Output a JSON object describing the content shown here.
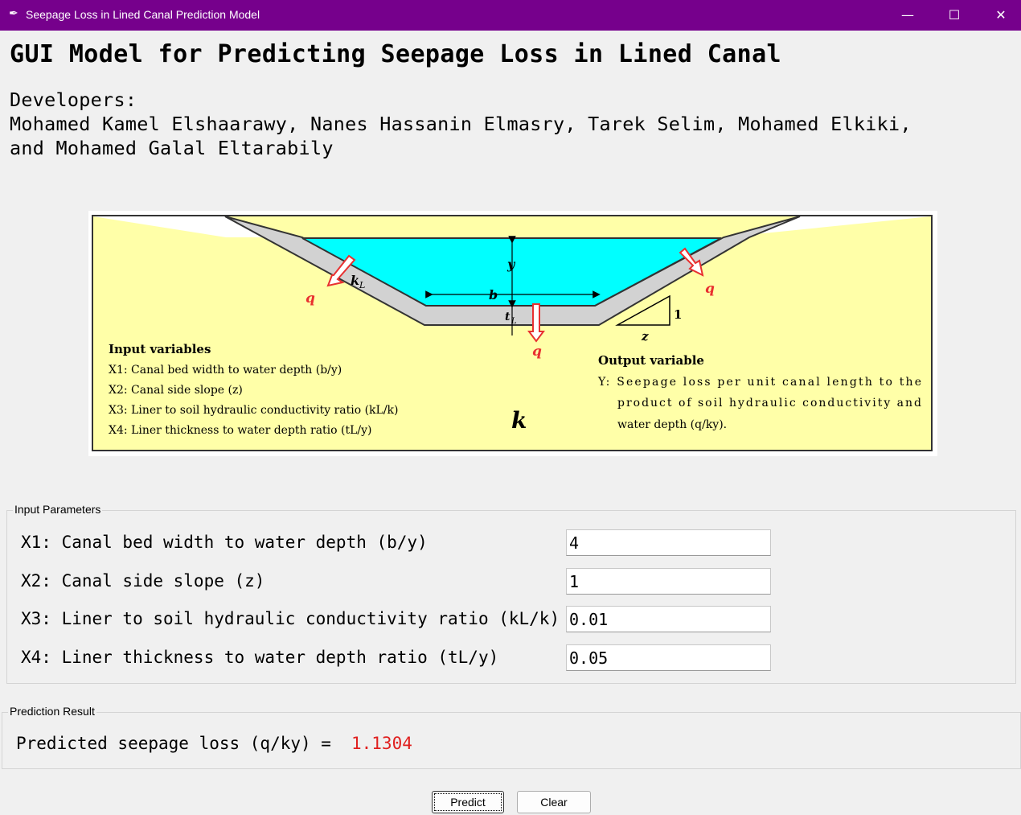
{
  "window": {
    "title": "Seepage Loss in Lined Canal Prediction Model",
    "app_icon": "feather-icon",
    "title_bar_color": "#76008c",
    "minimize": "—",
    "maximize": "☐",
    "close": "✕"
  },
  "header": {
    "title": "GUI Model for Predicting Seepage Loss in Lined Canal",
    "developers_label": "Developers:",
    "developers_line1": "Mohamed Kamel Elshaarawy, Nanes Hassanin Elmasry, Tarek Selim, Mohamed Elkiki,",
    "developers_line2": "and Mohamed Galal Eltarabily"
  },
  "figure": {
    "soil_color": "#ffffa8",
    "water_color": "#00ffff",
    "lining_color": "#d4d4d4",
    "arrow_color": "#e83030",
    "label_y": "y",
    "label_b": "b",
    "label_tl": "t",
    "label_tl_sub": "L",
    "label_kl": "k",
    "label_kl_sub": "L",
    "label_q": "q",
    "label_z": "z",
    "label_1": "1",
    "label_k": "k",
    "inputs_title": "Input variables",
    "inputs": [
      "X1: Canal bed width to water depth (b/y)",
      "X2: Canal side slope (z)",
      "X3: Liner to soil hydraulic conductivity ratio (kL/k)",
      "X4: Liner thickness to water depth ratio (tL/y)"
    ],
    "output_title": "Output variable",
    "output_lines": [
      "Y: Seepage loss per unit canal length to the",
      "product of soil hydraulic conductivity and",
      "water depth (q/ky)."
    ]
  },
  "input_group": {
    "label": "Input Parameters",
    "params": [
      {
        "label": "X1: Canal bed width to water depth (b/y)",
        "value": "4"
      },
      {
        "label": "X2: Canal side slope (z)",
        "value": "1"
      },
      {
        "label": "X3: Liner to soil hydraulic conductivity ratio (kL/k)",
        "value": "0.01"
      },
      {
        "label": "X4: Liner thickness to water depth ratio (tL/y)",
        "value": "0.05"
      }
    ]
  },
  "result_group": {
    "label": "Prediction Result",
    "result_label": "Predicted seepage loss (q/ky) =",
    "result_value": "1.1304",
    "result_color": "#e0201f"
  },
  "buttons": {
    "predict": "Predict",
    "clear": "Clear"
  }
}
